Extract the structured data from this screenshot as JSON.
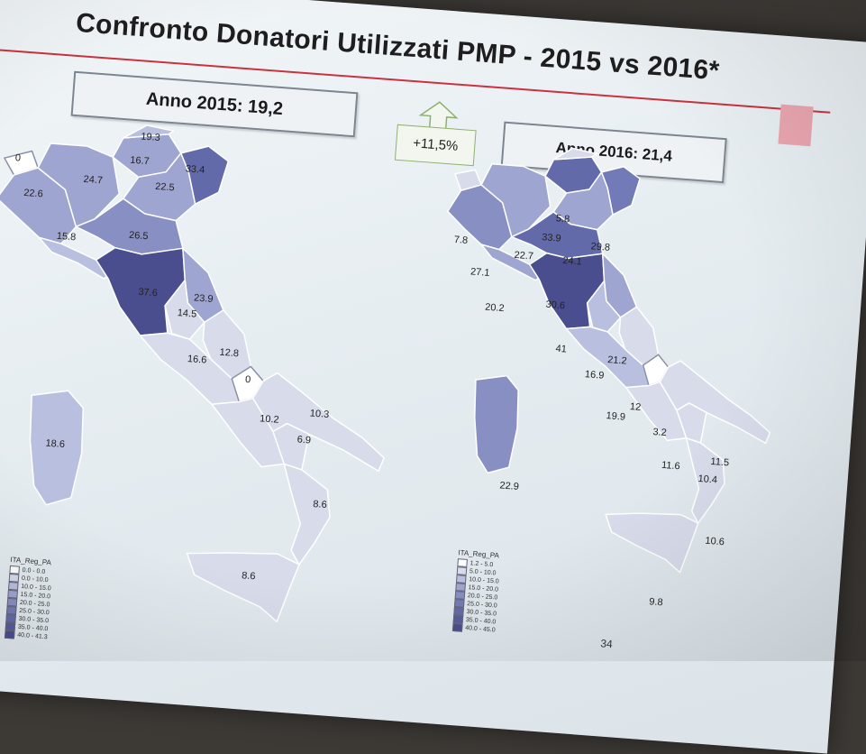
{
  "slide": {
    "title": "Confronto Donatori Utilizzati PMP - 2015 vs 2016*",
    "box_2015": "Anno 2015: 19,2",
    "box_2016": "Anno 2016: 21,4",
    "growth": "+11,5%",
    "page_number": "34"
  },
  "colors": {
    "accent_red": "#c9323e",
    "region_fill": [
      "#ffffff",
      "#d7dbea",
      "#b9bfde",
      "#9ea5d0",
      "#8890c3",
      "#727bb7",
      "#636aaa",
      "#555d9e",
      "#4a4e8f"
    ]
  },
  "map_2015": {
    "labels": [
      "0",
      "22.6",
      "15.8",
      "24.7",
      "16.7",
      "19.3",
      "33.4",
      "22.5",
      "26.5",
      "37.6",
      "23.9",
      "14.5",
      "16.6",
      "12.8",
      "0",
      "10.2",
      "10.3",
      "6.9",
      "8.6",
      "8.6",
      "18.6"
    ],
    "legend": {
      "title": "ITA_Reg_PA",
      "items": [
        "0.0 - 0.0",
        "0.0 - 10.0",
        "10.0 - 15.0",
        "15.0 - 20.0",
        "20.0 - 25.0",
        "25.0 - 30.0",
        "30.0 - 35.0",
        "35.0 - 40.0",
        "40.0 - 41.3"
      ]
    }
  },
  "map_2016": {
    "labels": [
      "5.8",
      "7.8",
      "27.1",
      "22.7",
      "33.9",
      "24.1",
      "29.8",
      "20.2",
      "30.6",
      "41",
      "21.2",
      "16.9",
      "12",
      "19.9",
      "3.2",
      "11.6",
      "11.5",
      "10.4",
      "10.6",
      "9.8",
      "22.9"
    ],
    "legend": {
      "title": "ITA_Reg_PA",
      "items": [
        "1.2 - 5.0",
        "5.0 - 10.0",
        "10.0 - 15.0",
        "15.0 - 20.0",
        "20.0 - 25.0",
        "25.0 - 30.0",
        "30.0 - 35.0",
        "35.0 - 40.0",
        "40.0 - 45.0"
      ]
    }
  }
}
